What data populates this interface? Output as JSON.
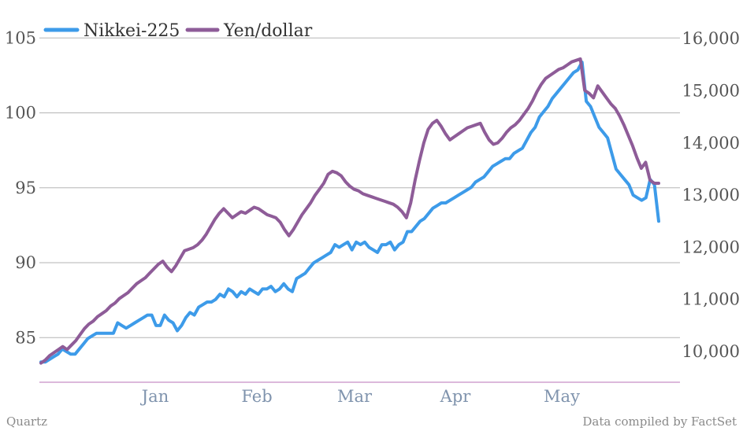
{
  "chart_data": {
    "type": "line",
    "x_ticks": [
      "Jan",
      "Feb",
      "Mar",
      "Apr",
      "May"
    ],
    "y_left": {
      "ticks": [
        "85",
        "90",
        "95",
        "100",
        "105"
      ],
      "values": [
        85,
        90,
        95,
        100,
        105
      ],
      "range": [
        82,
        105
      ]
    },
    "y_right": {
      "ticks": [
        "10,000",
        "11,000",
        "12,000",
        "13,000",
        "14,000",
        "15,000",
        "16,000"
      ],
      "values": [
        10000,
        11000,
        12000,
        13000,
        14000,
        15000,
        16000
      ],
      "range": [
        9500,
        16000
      ]
    },
    "grid": true,
    "legend_position": "top-left",
    "series": [
      {
        "name": "Nikkei-225",
        "axis": "right",
        "color": "#3d9be9",
        "values": [
          9800,
          9800,
          9850,
          9900,
          9950,
          10050,
          10000,
          9950,
          9950,
          10050,
          10150,
          10250,
          10300,
          10350,
          10350,
          10350,
          10350,
          10350,
          10550,
          10500,
          10450,
          10500,
          10550,
          10600,
          10650,
          10700,
          10700,
          10500,
          10500,
          10700,
          10600,
          10550,
          10400,
          10500,
          10650,
          10750,
          10700,
          10850,
          10900,
          10950,
          10950,
          11000,
          11100,
          11050,
          11200,
          11150,
          11050,
          11150,
          11100,
          11200,
          11150,
          11100,
          11200,
          11200,
          11250,
          11150,
          11200,
          11300,
          11200,
          11150,
          11400,
          11450,
          11500,
          11600,
          11700,
          11750,
          11800,
          11850,
          11900,
          12050,
          12000,
          12050,
          12100,
          11950,
          12100,
          12050,
          12100,
          12000,
          11950,
          11900,
          12050,
          12050,
          12100,
          11950,
          12050,
          12100,
          12300,
          12300,
          12400,
          12500,
          12550,
          12650,
          12750,
          12800,
          12850,
          12850,
          12900,
          12950,
          13000,
          13050,
          13100,
          13150,
          13250,
          13300,
          13350,
          13450,
          13550,
          13600,
          13650,
          13700,
          13700,
          13800,
          13850,
          13900,
          14050,
          14200,
          14300,
          14500,
          14600,
          14700,
          14850,
          14950,
          15050,
          15150,
          15250,
          15350,
          15400,
          15550,
          14800,
          14700,
          14500,
          14300,
          14200,
          14100,
          13800,
          13500,
          13400,
          13300,
          13200,
          13000,
          12950,
          12900,
          12950,
          13300,
          13200,
          12500
        ]
      },
      {
        "name": "Yen/dollar",
        "axis": "left",
        "color": "#8e5c98",
        "values": [
          83.3,
          83.5,
          83.8,
          84.0,
          84.2,
          84.4,
          84.2,
          84.5,
          84.8,
          85.2,
          85.6,
          85.9,
          86.1,
          86.4,
          86.6,
          86.8,
          87.1,
          87.3,
          87.6,
          87.8,
          88.0,
          88.3,
          88.6,
          88.8,
          89.0,
          89.3,
          89.6,
          89.9,
          90.1,
          89.7,
          89.4,
          89.8,
          90.3,
          90.8,
          90.9,
          91.0,
          91.2,
          91.5,
          91.9,
          92.4,
          92.9,
          93.3,
          93.6,
          93.3,
          93.0,
          93.2,
          93.4,
          93.3,
          93.5,
          93.7,
          93.6,
          93.4,
          93.2,
          93.1,
          93.0,
          92.7,
          92.2,
          91.8,
          92.2,
          92.7,
          93.2,
          93.6,
          94.0,
          94.5,
          94.9,
          95.3,
          95.9,
          96.1,
          96.0,
          95.8,
          95.4,
          95.1,
          94.9,
          94.8,
          94.6,
          94.5,
          94.4,
          94.3,
          94.2,
          94.1,
          94.0,
          93.9,
          93.7,
          93.4,
          93.0,
          94.0,
          95.5,
          96.8,
          98.0,
          98.9,
          99.3,
          99.5,
          99.1,
          98.6,
          98.2,
          98.4,
          98.6,
          98.8,
          99.0,
          99.1,
          99.2,
          99.3,
          98.7,
          98.2,
          97.9,
          98.0,
          98.3,
          98.7,
          99.0,
          99.2,
          99.5,
          99.9,
          100.3,
          100.8,
          101.4,
          101.9,
          102.3,
          102.5,
          102.7,
          102.9,
          103.0,
          103.2,
          103.4,
          103.5,
          103.6,
          101.5,
          101.3,
          101.0,
          101.8,
          101.4,
          101.0,
          100.6,
          100.3,
          99.8,
          99.2,
          98.5,
          97.8,
          97.0,
          96.3,
          96.7,
          95.5,
          95.3,
          95.3
        ]
      }
    ]
  },
  "legend": [
    {
      "label": "Nikkei-225",
      "color": "#3d9be9"
    },
    {
      "label": "Yen/dollar",
      "color": "#8e5c98"
    }
  ],
  "footer": {
    "source": "Quartz",
    "credit": "Data compiled by FactSet"
  },
  "colors": {
    "grid": "#b5b5b5",
    "baseline": "#c78fc5",
    "nikkei": "#3d9be9",
    "yen": "#8e5c98"
  }
}
